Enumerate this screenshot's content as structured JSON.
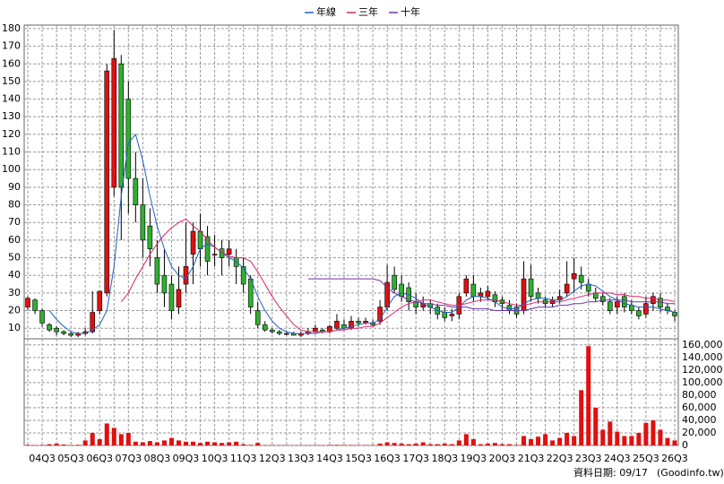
{
  "chart_data": {
    "type": "candlestick",
    "up_color": "#e01010",
    "down_color": "#30b030",
    "categories": [
      null,
      null,
      "04Q3",
      null,
      null,
      null,
      "05Q3",
      null,
      null,
      null,
      "06Q3",
      null,
      null,
      null,
      "07Q3",
      null,
      null,
      null,
      "08Q3",
      null,
      null,
      null,
      "09Q3",
      null,
      null,
      null,
      "10Q3",
      null,
      null,
      null,
      "11Q3",
      null,
      null,
      null,
      "12Q3",
      null,
      null,
      null,
      "13Q3",
      null,
      null,
      null,
      "14Q3",
      null,
      null,
      null,
      "15Q3",
      null,
      null,
      null,
      "16Q3",
      null,
      null,
      null,
      "17Q3",
      null,
      null,
      null,
      "18Q3",
      null,
      null,
      null,
      "19Q3",
      null,
      null,
      null,
      "20Q3",
      null,
      null,
      null,
      "21Q3",
      null,
      null,
      null,
      "22Q3",
      null,
      null,
      null,
      "23Q3",
      null,
      null,
      null,
      "24Q3",
      null,
      null,
      null,
      "25Q3",
      null,
      null,
      null,
      "26Q3"
    ],
    "open": [
      22,
      26,
      20,
      12,
      10,
      8,
      7,
      6,
      7,
      8,
      20,
      30,
      90,
      160,
      140,
      95,
      80,
      68,
      50,
      40,
      35,
      22,
      35,
      52,
      65,
      62,
      52,
      55,
      52,
      50,
      45,
      38,
      20,
      12,
      9,
      8,
      7,
      7,
      6,
      7,
      8,
      9,
      8,
      10,
      12,
      10,
      14,
      13,
      13,
      14,
      22,
      40,
      35,
      33,
      25,
      22,
      24,
      22,
      19,
      17,
      18,
      30,
      35,
      28,
      28,
      29,
      26,
      23,
      22,
      20,
      38,
      30,
      26,
      24,
      26,
      30,
      38,
      40,
      35,
      30,
      28,
      25,
      22,
      28,
      23,
      20,
      18,
      24,
      27,
      22,
      19
    ],
    "high": [
      28,
      27,
      21,
      13,
      11,
      9,
      8,
      8,
      10,
      31,
      31,
      160,
      179,
      165,
      150,
      110,
      95,
      78,
      60,
      55,
      40,
      45,
      70,
      70,
      75,
      68,
      63,
      60,
      60,
      55,
      50,
      40,
      25,
      14,
      10,
      9,
      8,
      8,
      8,
      10,
      12,
      10,
      12,
      18,
      15,
      17,
      16,
      16,
      15,
      26,
      46,
      45,
      40,
      36,
      30,
      28,
      26,
      24,
      22,
      21,
      30,
      40,
      40,
      33,
      34,
      31,
      28,
      26,
      24,
      48,
      46,
      33,
      28,
      28,
      32,
      48,
      50,
      45,
      38,
      33,
      30,
      27,
      28,
      30,
      26,
      22,
      28,
      30,
      30,
      24,
      20
    ],
    "low": [
      20,
      18,
      11,
      8,
      6,
      6,
      5,
      5,
      6,
      7,
      18,
      28,
      85,
      60,
      75,
      70,
      50,
      45,
      30,
      22,
      15,
      18,
      30,
      35,
      45,
      40,
      45,
      40,
      45,
      35,
      30,
      18,
      10,
      8,
      7,
      6,
      6,
      6,
      5,
      6,
      7,
      7,
      7,
      9,
      9,
      9,
      11,
      12,
      11,
      12,
      20,
      30,
      25,
      20,
      18,
      20,
      18,
      15,
      14,
      14,
      15,
      28,
      25,
      25,
      26,
      22,
      20,
      18,
      16,
      18,
      25,
      24,
      22,
      22,
      24,
      28,
      30,
      32,
      28,
      25,
      23,
      18,
      18,
      19,
      18,
      15,
      16,
      20,
      19,
      18,
      14
    ],
    "close": [
      27,
      20,
      13,
      9,
      8,
      7,
      6,
      7,
      8,
      19,
      31,
      156,
      163,
      90,
      95,
      80,
      60,
      55,
      35,
      30,
      20,
      32,
      45,
      65,
      55,
      48,
      52,
      50,
      55,
      45,
      35,
      22,
      12,
      9,
      8,
      7,
      7,
      6,
      7,
      8,
      10,
      8,
      11,
      14,
      10,
      14,
      13,
      14,
      12,
      22,
      36,
      32,
      28,
      25,
      22,
      24,
      22,
      18,
      16,
      18,
      28,
      38,
      28,
      30,
      31,
      25,
      24,
      20,
      18,
      38,
      28,
      27,
      24,
      26,
      28,
      35,
      41,
      36,
      31,
      27,
      25,
      20,
      25,
      22,
      20,
      17,
      24,
      28,
      22,
      20,
      17
    ],
    "ylim": [
      4,
      182
    ],
    "yticks": [
      10,
      20,
      30,
      40,
      50,
      60,
      70,
      80,
      90,
      100,
      110,
      120,
      130,
      140,
      150,
      160,
      170,
      180
    ],
    "series": [
      {
        "name": "年線",
        "color": "#2060c0",
        "values": [
          null,
          null,
          null,
          20,
          15,
          11,
          8,
          7,
          7,
          9,
          12,
          20,
          45,
          85,
          115,
          120,
          105,
          85,
          68,
          55,
          45,
          40,
          38,
          45,
          55,
          58,
          56,
          53,
          50,
          48,
          44,
          38,
          28,
          20,
          14,
          10,
          8,
          7,
          7,
          7,
          7,
          8,
          8,
          9,
          10,
          11,
          12,
          13,
          13,
          15,
          22,
          28,
          30,
          29,
          27,
          24,
          22,
          20,
          19,
          19,
          22,
          26,
          28,
          28,
          27,
          25,
          22,
          21,
          21,
          24,
          26,
          27,
          27,
          26,
          26,
          28,
          31,
          34,
          35,
          34,
          31,
          28,
          26,
          24,
          23,
          22,
          22,
          22,
          21,
          20,
          19
        ]
      },
      {
        "name": "三年",
        "color": "#e0206a",
        "values": [
          null,
          null,
          null,
          null,
          null,
          null,
          null,
          null,
          null,
          null,
          null,
          null,
          null,
          25,
          30,
          38,
          45,
          52,
          58,
          63,
          67,
          70,
          72,
          68,
          65,
          60,
          56,
          53,
          51,
          50,
          50,
          48,
          42,
          35,
          28,
          22,
          17,
          12,
          9,
          8,
          8,
          8,
          8,
          9,
          9,
          10,
          10,
          11,
          11,
          13,
          16,
          19,
          22,
          24,
          25,
          26,
          26,
          25,
          24,
          23,
          23,
          24,
          25,
          26,
          26,
          26,
          25,
          24,
          23,
          23,
          24,
          25,
          25,
          25,
          25,
          26,
          27,
          28,
          29,
          30,
          30,
          30,
          29,
          29,
          28,
          28,
          27,
          27,
          26,
          26,
          25
        ]
      },
      {
        "name": "十年",
        "color": "#7030b0",
        "values": [
          null,
          null,
          null,
          null,
          null,
          null,
          null,
          null,
          null,
          null,
          null,
          null,
          null,
          null,
          null,
          null,
          null,
          null,
          null,
          null,
          null,
          null,
          null,
          null,
          null,
          null,
          null,
          null,
          null,
          null,
          null,
          null,
          null,
          null,
          null,
          null,
          null,
          null,
          null,
          38,
          38,
          38,
          38,
          38,
          38,
          38,
          38,
          38,
          38,
          37,
          33,
          30,
          28,
          26,
          25,
          24,
          24,
          23,
          23,
          22,
          22,
          22,
          21,
          21,
          21,
          20,
          20,
          20,
          20,
          20,
          21,
          22,
          22,
          22,
          23,
          23,
          24,
          24,
          25,
          25,
          26,
          26,
          26,
          26,
          25,
          25,
          25,
          25,
          25,
          24,
          24
        ]
      }
    ],
    "volume": {
      "color": "#e01010",
      "values": [
        1000,
        500,
        800,
        2000,
        3000,
        1500,
        500,
        1000,
        8000,
        20000,
        10000,
        35000,
        28000,
        18000,
        20000,
        6000,
        5000,
        7000,
        5000,
        8000,
        12000,
        8000,
        6000,
        6000,
        4000,
        6000,
        5000,
        4000,
        5000,
        6000,
        2000,
        1000,
        4000,
        500,
        500,
        500,
        500,
        300,
        500,
        500,
        500,
        500,
        800,
        1000,
        800,
        800,
        600,
        600,
        800,
        3000,
        5000,
        4000,
        3000,
        2000,
        3000,
        5000,
        2000,
        2000,
        3000,
        2000,
        8000,
        18000,
        10000,
        2000,
        3000,
        4000,
        2000,
        2000,
        1000,
        15000,
        10000,
        14000,
        18000,
        8000,
        12000,
        20000,
        15000,
        88000,
        158000,
        60000,
        25000,
        38000,
        22000,
        15000,
        15000,
        20000,
        36000,
        40000,
        25000,
        12000,
        8000
      ],
      "ylim": [
        0,
        164000
      ],
      "yticks": [
        0,
        {
          "value": 20000,
          "label": "20,000"
        },
        {
          "value": 40000,
          "label": "40,000"
        },
        {
          "value": 60000,
          "label": "60,000"
        },
        {
          "value": 80000,
          "label": "80,000"
        },
        {
          "value": 100000,
          "label": "100,000"
        },
        {
          "value": 120000,
          "label": "120,000"
        },
        {
          "value": 140000,
          "label": "140,000"
        },
        {
          "value": 160000,
          "label": "160,000"
        }
      ]
    },
    "grid": true,
    "footer": "資料日期: 09/17",
    "source": "(Goodinfo.tw)"
  }
}
